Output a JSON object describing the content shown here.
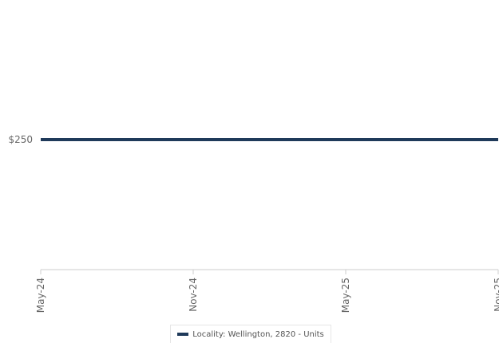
{
  "chart_data": {
    "type": "line",
    "x": [
      "May-24",
      "Nov-24",
      "May-25",
      "Nov-25"
    ],
    "x_tick_labels": [
      "May-24",
      "Nov-24",
      "May-25",
      "Nov-25"
    ],
    "y_tick_labels": [
      "$250"
    ],
    "y_ticks": [
      250
    ],
    "series": [
      {
        "name": "Locality: Wellington, 2820 - Units",
        "values": [
          250,
          250,
          250,
          250
        ],
        "color": "#1f3a5a"
      }
    ],
    "title": "",
    "xlabel": "",
    "ylabel": "",
    "ylim": [
      0,
      500
    ],
    "grid": false,
    "legend_position": "bottom-center"
  }
}
